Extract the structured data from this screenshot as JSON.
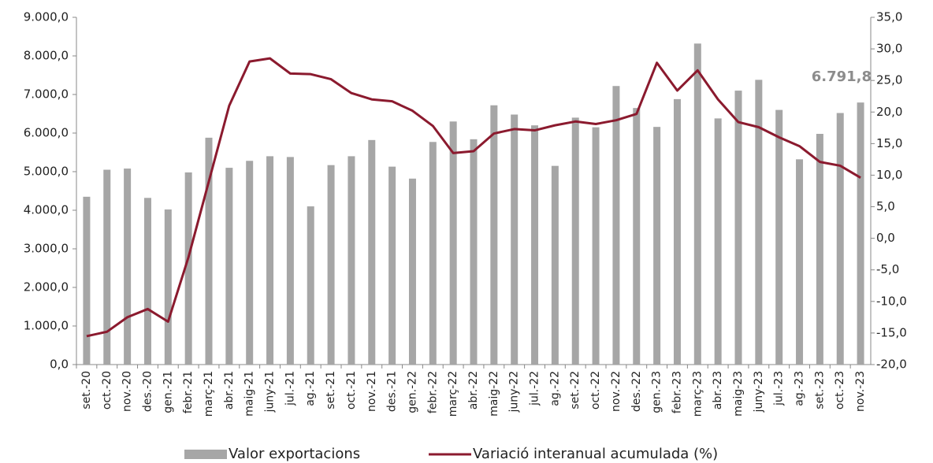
{
  "chart_data": {
    "type": "bar_line",
    "categories": [
      "set.-20",
      "oct.-20",
      "nov.-20",
      "des.-20",
      "gen.-21",
      "febr.-21",
      "març-21",
      "abr.-21",
      "maig-21",
      "juny-21",
      "jul.-21",
      "ag.-21",
      "set.-21",
      "oct.-21",
      "nov.-21",
      "des.-21",
      "gen.-22",
      "febr.-22",
      "març-22",
      "abr.-22",
      "maig-22",
      "juny-22",
      "jul.-22",
      "ag.-22",
      "set.-22",
      "oct.-22",
      "nov.-22",
      "des.-22",
      "gen.-23",
      "febr.-23",
      "març-23",
      "abr.-23",
      "maig-23",
      "juny-23",
      "jul.-23",
      "ag.-23",
      "set.-23",
      "oct.-23",
      "nov.-23"
    ],
    "series": [
      {
        "name": "Valor exportacions",
        "type": "bar",
        "color": "#a6a6a6",
        "values": [
          4350,
          5050,
          5080,
          4320,
          4020,
          4980,
          5880,
          5100,
          5280,
          5400,
          5380,
          4100,
          5170,
          5400,
          5820,
          5130,
          4820,
          5770,
          6300,
          5840,
          6720,
          6480,
          6200,
          5150,
          6400,
          6150,
          7220,
          6650,
          6160,
          6880,
          8320,
          6380,
          7100,
          7380,
          6600,
          5320,
          5980,
          6520,
          6791.8
        ],
        "value_labels": [
          null,
          null,
          null,
          null,
          null,
          null,
          null,
          null,
          null,
          null,
          null,
          null,
          null,
          null,
          null,
          null,
          null,
          null,
          null,
          null,
          null,
          null,
          null,
          null,
          null,
          null,
          null,
          null,
          null,
          null,
          null,
          null,
          null,
          null,
          null,
          null,
          null,
          null,
          "6.791,8"
        ]
      },
      {
        "name": "Variació interanual acumulada (%)",
        "type": "line",
        "color": "#8b1a2e",
        "axis": "y2",
        "values": [
          -15.5,
          -14.8,
          -12.5,
          -11.2,
          -13.2,
          -3,
          9,
          21,
          28,
          28.5,
          26.1,
          26,
          25.2,
          23,
          22,
          21.7,
          20.2,
          17.8,
          13.5,
          13.8,
          16.6,
          17.3,
          17.1,
          17.9,
          18.5,
          18.1,
          18.7,
          19.7,
          27.8,
          23.4,
          26.6,
          22,
          18.4,
          17.6,
          16,
          14.6,
          12.1,
          11.5,
          9.6
        ]
      }
    ],
    "ylim": [
      0,
      9000
    ],
    "yticks": [
      {
        "value": 0,
        "label": "0,0"
      },
      {
        "value": 1000,
        "label": "1.000,0"
      },
      {
        "value": 2000,
        "label": "2.000,0"
      },
      {
        "value": 3000,
        "label": "3.000,0"
      },
      {
        "value": 4000,
        "label": "4.000,0"
      },
      {
        "value": 5000,
        "label": "5.000,0"
      },
      {
        "value": 6000,
        "label": "6.000,0"
      },
      {
        "value": 7000,
        "label": "7.000,0"
      },
      {
        "value": 8000,
        "label": "8.000,0"
      },
      {
        "value": 9000,
        "label": "9.000,0"
      }
    ],
    "y2lim": [
      -20,
      35
    ],
    "y2ticks": [
      {
        "value": -20,
        "label": "-20,0"
      },
      {
        "value": -15,
        "label": "-15,0"
      },
      {
        "value": -10,
        "label": "-10,0"
      },
      {
        "value": -5,
        "label": "-5,0"
      },
      {
        "value": 0,
        "label": "0,0"
      },
      {
        "value": 5,
        "label": "5,0"
      },
      {
        "value": 10,
        "label": "10,0"
      },
      {
        "value": 15,
        "label": "15,0"
      },
      {
        "value": 20,
        "label": "20,0"
      },
      {
        "value": 25,
        "label": "25,0"
      },
      {
        "value": 30,
        "label": "30,0"
      },
      {
        "value": 35,
        "label": "35,0"
      }
    ],
    "grid": false,
    "legend": "bottom"
  }
}
